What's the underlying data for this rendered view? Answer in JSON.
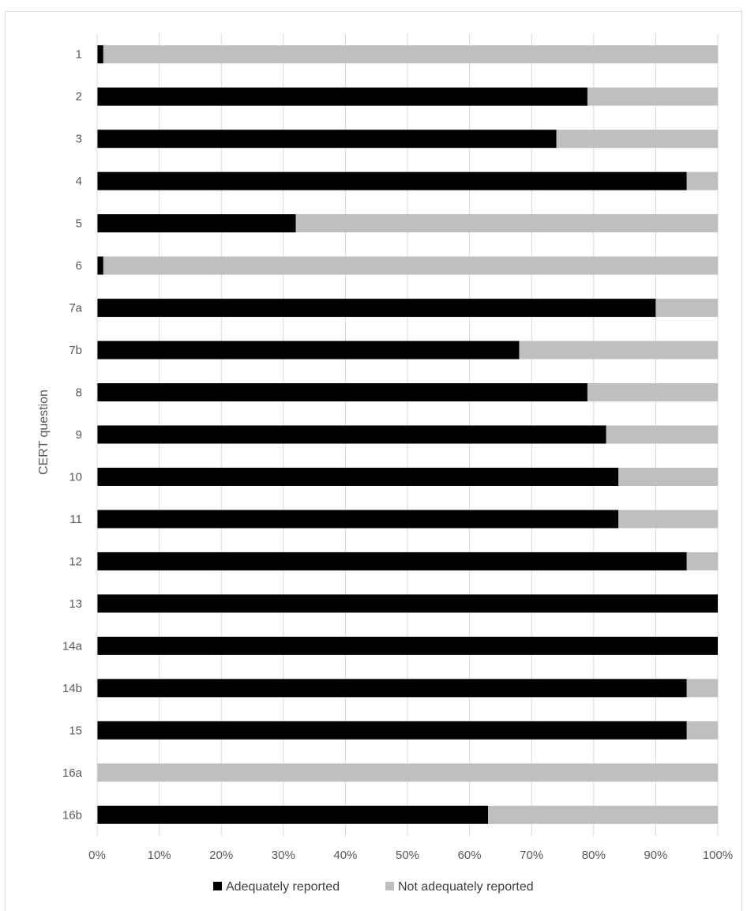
{
  "chart_data": {
    "type": "bar",
    "orientation": "horizontal",
    "stacked": "percent",
    "title": "",
    "ylabel": "CERT question",
    "xlabel": "",
    "xlim": [
      0,
      100
    ],
    "x_ticks": [
      "0%",
      "10%",
      "20%",
      "30%",
      "40%",
      "50%",
      "60%",
      "70%",
      "80%",
      "90%",
      "100%"
    ],
    "grid": "vertical",
    "legend_position": "bottom",
    "categories": [
      "1",
      "2",
      "3",
      "4",
      "5",
      "6",
      "7a",
      "7b",
      "8",
      "9",
      "10",
      "11",
      "12",
      "13",
      "14a",
      "14b",
      "15",
      "16a",
      "16b"
    ],
    "series": [
      {
        "name": "Adequately reported",
        "color": "#000000",
        "values": [
          1,
          79,
          74,
          95,
          32,
          1,
          90,
          68,
          79,
          82,
          84,
          84,
          95,
          100,
          100,
          95,
          95,
          0,
          63
        ]
      },
      {
        "name": "Not adequately reported",
        "color": "#bfbfbf",
        "values": [
          99,
          21,
          26,
          5,
          68,
          99,
          10,
          32,
          21,
          18,
          16,
          16,
          5,
          0,
          0,
          5,
          5,
          100,
          37
        ]
      }
    ]
  }
}
